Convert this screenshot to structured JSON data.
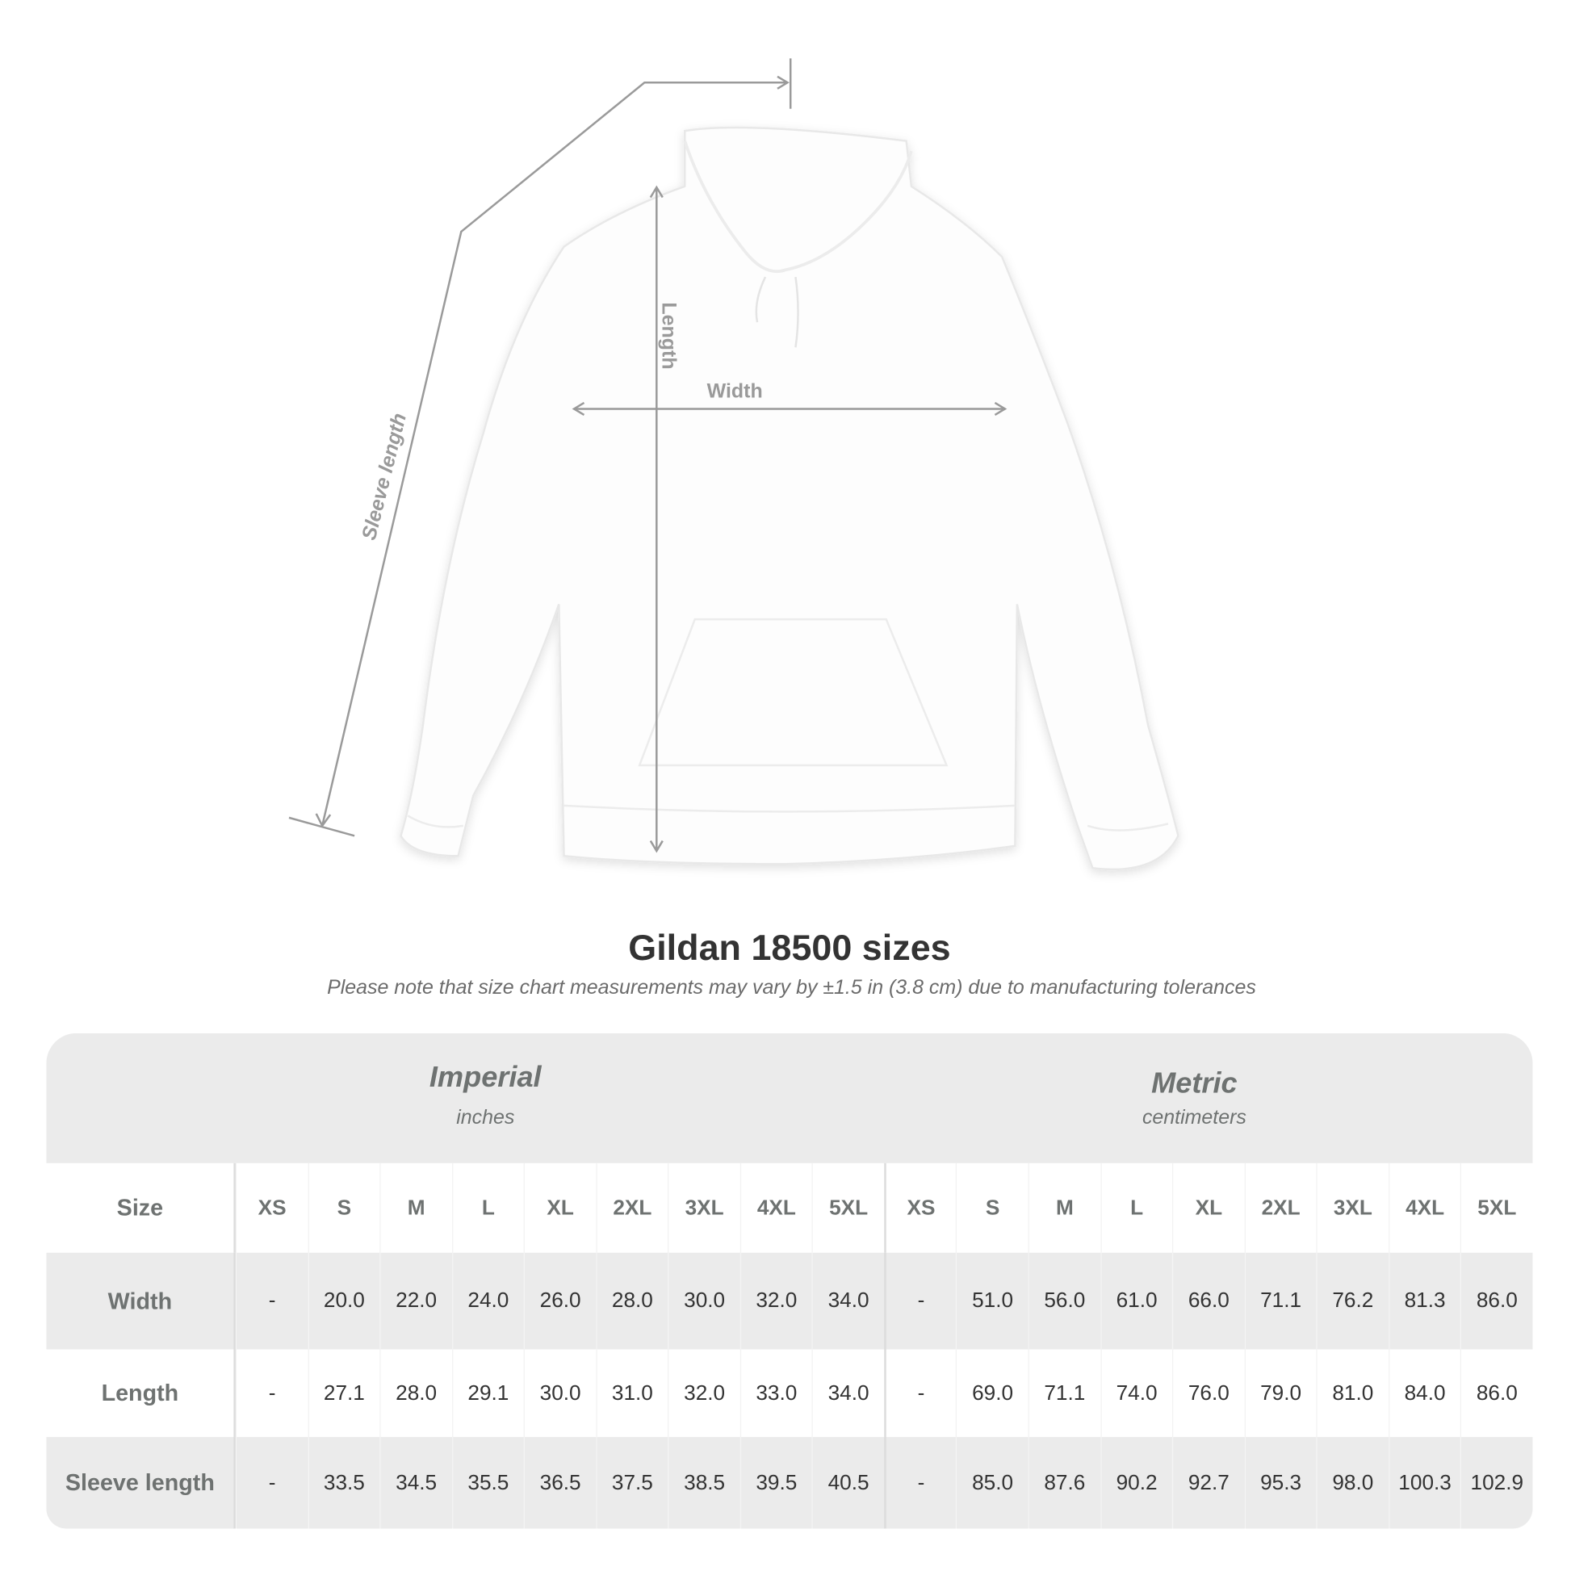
{
  "diagram": {
    "labels": {
      "sleeve": "Sleeve length",
      "length": "Length",
      "width": "Width"
    },
    "colors": {
      "measure_line": "#9a9a9a",
      "garment": "#ffffff"
    }
  },
  "title": "Gildan 18500 sizes",
  "note": "Please note that size chart measurements may vary by ±1.5 in (3.8 cm) due to manufacturing tolerances",
  "table": {
    "imperial": {
      "name": "Imperial",
      "unit": "inches"
    },
    "metric": {
      "name": "Metric",
      "unit": "centimeters"
    },
    "size_label": "Size",
    "sizes": [
      "XS",
      "S",
      "M",
      "L",
      "XL",
      "2XL",
      "3XL",
      "4XL",
      "5XL"
    ],
    "rows": [
      {
        "label": "Width",
        "imperial": [
          "-",
          "20.0",
          "22.0",
          "24.0",
          "26.0",
          "28.0",
          "30.0",
          "32.0",
          "34.0"
        ],
        "metric": [
          "-",
          "51.0",
          "56.0",
          "61.0",
          "66.0",
          "71.1",
          "76.2",
          "81.3",
          "86.0"
        ]
      },
      {
        "label": "Length",
        "imperial": [
          "-",
          "27.1",
          "28.0",
          "29.1",
          "30.0",
          "31.0",
          "32.0",
          "33.0",
          "34.0"
        ],
        "metric": [
          "-",
          "69.0",
          "71.1",
          "74.0",
          "76.0",
          "79.0",
          "81.0",
          "84.0",
          "86.0"
        ]
      },
      {
        "label": "Sleeve length",
        "imperial": [
          "-",
          "33.5",
          "34.5",
          "35.5",
          "36.5",
          "37.5",
          "38.5",
          "39.5",
          "40.5"
        ],
        "metric": [
          "-",
          "85.0",
          "87.6",
          "90.2",
          "92.7",
          "95.3",
          "98.0",
          "100.3",
          "102.9"
        ]
      }
    ],
    "colors": {
      "band": "#ebebeb",
      "label_text": "#6e7271",
      "value_text": "#333333"
    }
  }
}
